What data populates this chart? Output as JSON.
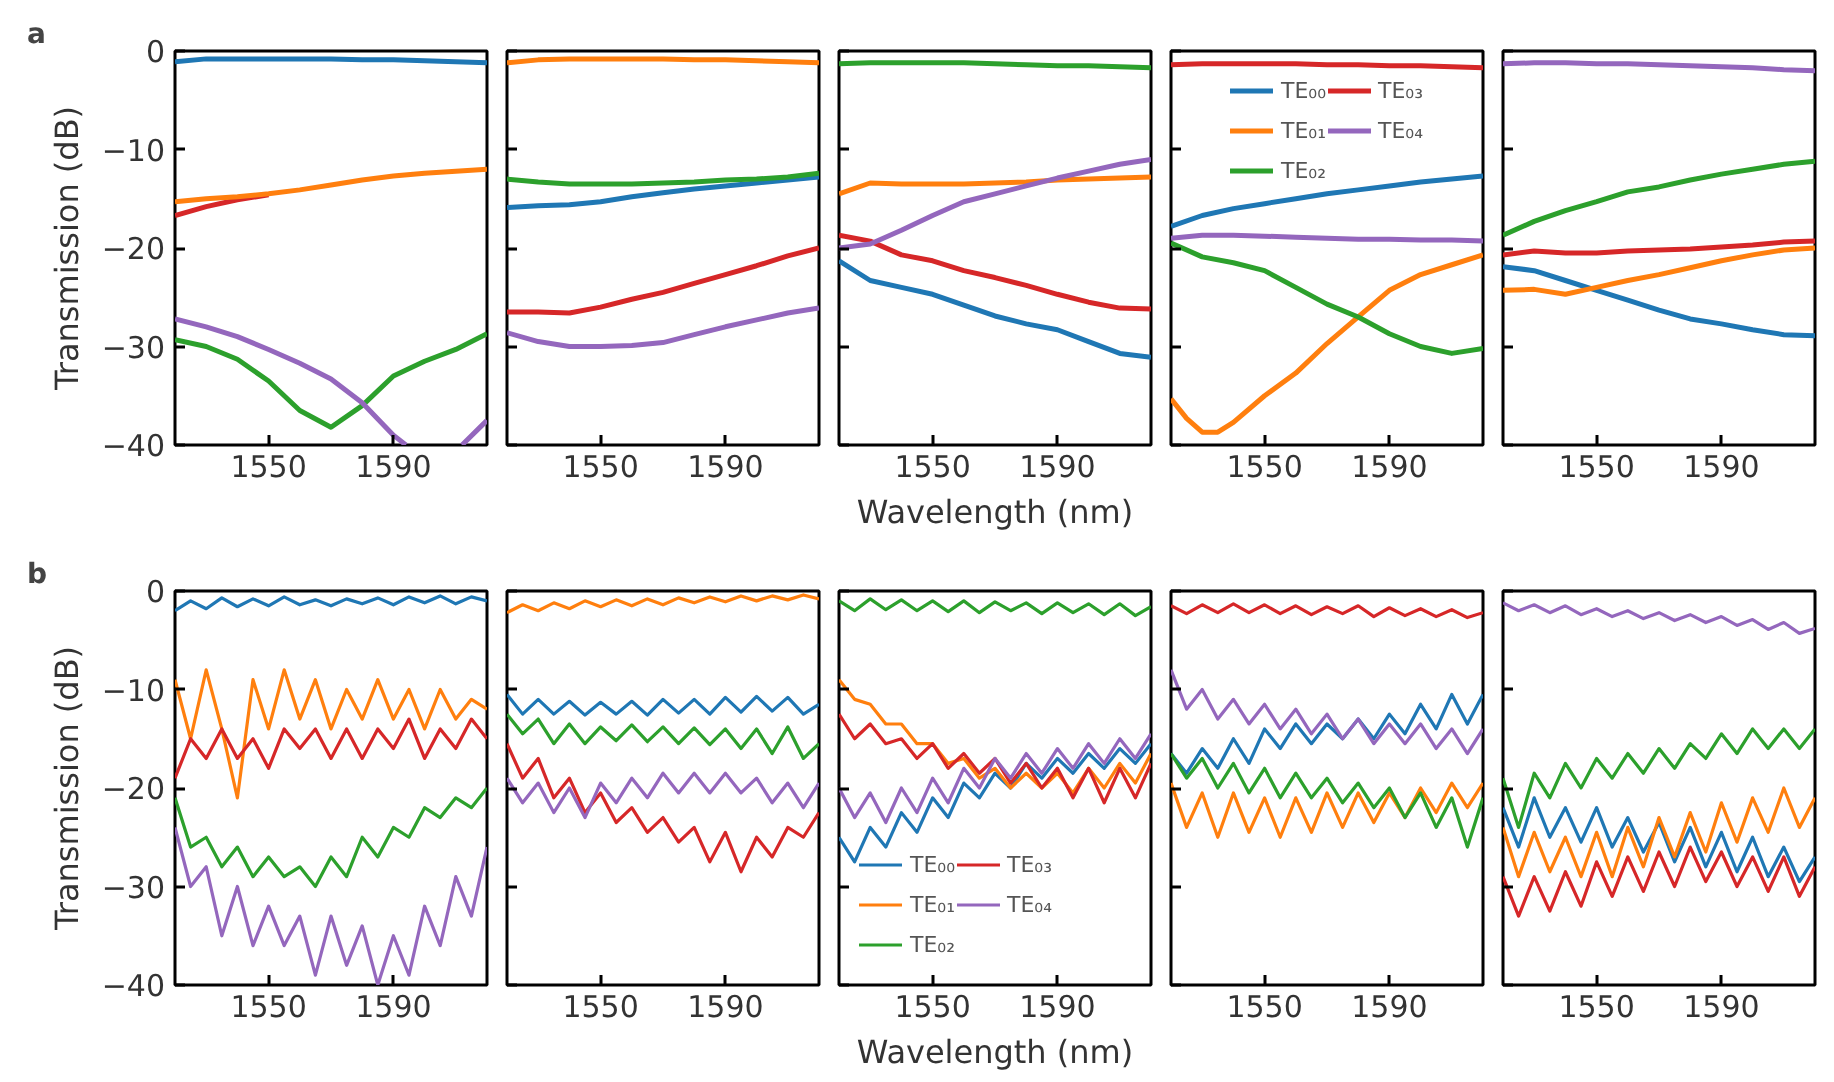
{
  "chart_data": [
    {
      "type": "line",
      "title": "a",
      "ylabel": "Transmission (dB)",
      "xlim": [
        1520,
        1620
      ],
      "ylim": [
        -40,
        0
      ],
      "xticks": [
        1550,
        1590
      ],
      "yticks": [
        {
          "value": -40,
          "label": "−40"
        },
        {
          "value": -30,
          "label": "−30"
        },
        {
          "value": -20,
          "label": "−20"
        },
        {
          "value": -10,
          "label": "−10"
        },
        0
      ],
      "x": [
        1520,
        1530,
        1540,
        1550,
        1560,
        1570,
        1580,
        1590,
        1600,
        1610,
        1620
      ],
      "series": [
        {
          "color": "#1f77b4",
          "values": [
            -1.1,
            -0.8,
            -0.8,
            -0.8,
            -0.8,
            -0.8,
            -0.9,
            -0.9,
            -1.0,
            -1.1,
            -1.2
          ]
        },
        {
          "color": "#d62728",
          "values": [
            -16.7,
            -15.8,
            -15.1,
            -14.6,
            null,
            null,
            null,
            null,
            null,
            null,
            null
          ]
        },
        {
          "color": "#ff7f0e",
          "values": [
            -15.3,
            -15.0,
            -14.8,
            -14.5,
            -14.1,
            -13.6,
            -13.1,
            -12.7,
            -12.4,
            -12.2,
            -12.0
          ]
        },
        {
          "color": "#2ca02c",
          "values": [
            -29.3,
            -30.0,
            -31.3,
            -33.5,
            -36.5,
            -38.2,
            -36.0,
            -33.0,
            -31.5,
            -30.3,
            -28.7
          ]
        },
        {
          "color": "#9467bd",
          "x": [
            1520,
            1530,
            1540,
            1550,
            1560,
            1570,
            1580,
            1590,
            1594,
            1603,
            1612,
            1620
          ],
          "values": [
            -27.2,
            -28.0,
            -29.0,
            -30.3,
            -31.7,
            -33.3,
            -35.7,
            -39.0,
            -40.0,
            null,
            -40.0,
            -37.5
          ]
        }
      ]
    },
    {
      "type": "line",
      "tick_labels": "x",
      "xlim": [
        1520,
        1620
      ],
      "ylim": [
        -40,
        0
      ],
      "xticks": [
        1550,
        1590
      ],
      "yticks": [
        {
          "value": -40,
          "label": null
        },
        {
          "value": -30,
          "label": null
        },
        {
          "value": -20,
          "label": null
        },
        {
          "value": -10,
          "label": null
        },
        {
          "value": 0,
          "label": null
        }
      ],
      "x": [
        1520,
        1530,
        1540,
        1550,
        1560,
        1570,
        1580,
        1590,
        1600,
        1610,
        1620
      ],
      "series": [
        {
          "color": "#1f77b4",
          "values": [
            -15.9,
            -15.7,
            -15.6,
            -15.3,
            -14.8,
            -14.4,
            -14.0,
            -13.7,
            -13.4,
            -13.1,
            -12.8
          ]
        },
        {
          "color": "#ff7f0e",
          "values": [
            -1.2,
            -0.9,
            -0.8,
            -0.8,
            -0.8,
            -0.8,
            -0.9,
            -0.9,
            -1.0,
            -1.1,
            -1.2
          ]
        },
        {
          "color": "#2ca02c",
          "values": [
            -13.0,
            -13.3,
            -13.5,
            -13.5,
            -13.5,
            -13.4,
            -13.3,
            -13.1,
            -13.0,
            -12.8,
            -12.4
          ]
        },
        {
          "color": "#d62728",
          "values": [
            -26.5,
            -26.5,
            -26.6,
            -26.0,
            -25.2,
            -24.5,
            -23.6,
            -22.7,
            -21.8,
            -20.8,
            -20.0
          ]
        },
        {
          "color": "#9467bd",
          "values": [
            -28.6,
            -29.5,
            -30.0,
            -30.0,
            -29.9,
            -29.6,
            -28.8,
            -28.0,
            -27.3,
            -26.6,
            -26.1
          ]
        }
      ]
    },
    {
      "type": "line",
      "tick_labels": "x",
      "xlabel": "Wavelength (nm)",
      "xlim": [
        1520,
        1620
      ],
      "ylim": [
        -40,
        0
      ],
      "xticks": [
        1550,
        1590
      ],
      "yticks": [
        {
          "value": -40,
          "label": null
        },
        {
          "value": -30,
          "label": null
        },
        {
          "value": -20,
          "label": null
        },
        {
          "value": -10,
          "label": null
        },
        {
          "value": 0,
          "label": null
        }
      ],
      "x": [
        1520,
        1530,
        1540,
        1550,
        1560,
        1570,
        1580,
        1590,
        1600,
        1610,
        1620
      ],
      "series": [
        {
          "color": "#1f77b4",
          "values": [
            -21.3,
            -23.3,
            -24.0,
            -24.7,
            -25.8,
            -26.9,
            -27.7,
            -28.3,
            -29.5,
            -30.7,
            -31.1
          ]
        },
        {
          "color": "#ff7f0e",
          "values": [
            -14.5,
            -13.4,
            -13.5,
            -13.5,
            -13.5,
            -13.4,
            -13.3,
            -13.1,
            -13.0,
            -12.9,
            -12.8
          ]
        },
        {
          "color": "#2ca02c",
          "values": [
            -1.3,
            -1.2,
            -1.2,
            -1.2,
            -1.2,
            -1.3,
            -1.4,
            -1.5,
            -1.5,
            -1.6,
            -1.7
          ]
        },
        {
          "color": "#d62728",
          "values": [
            -18.7,
            -19.3,
            -20.7,
            -21.3,
            -22.3,
            -23.0,
            -23.8,
            -24.7,
            -25.5,
            -26.1,
            -26.2
          ]
        },
        {
          "color": "#9467bd",
          "values": [
            -20.0,
            -19.6,
            -18.2,
            -16.7,
            -15.3,
            -14.5,
            -13.7,
            -12.9,
            -12.2,
            -11.5,
            -11.0
          ]
        }
      ]
    },
    {
      "type": "line",
      "tick_labels": "x",
      "legend": "top",
      "xlim": [
        1520,
        1620
      ],
      "ylim": [
        -40,
        0
      ],
      "xticks": [
        1550,
        1590
      ],
      "yticks": [
        {
          "value": -40,
          "label": null
        },
        {
          "value": -30,
          "label": null
        },
        {
          "value": -20,
          "label": null
        },
        {
          "value": -10,
          "label": null
        },
        {
          "value": 0,
          "label": null
        }
      ],
      "x": [
        1520,
        1530,
        1540,
        1550,
        1560,
        1570,
        1580,
        1590,
        1600,
        1610,
        1620
      ],
      "series": [
        {
          "name": "TE₀₀",
          "color": "#1f77b4",
          "values": [
            -17.8,
            -16.7,
            -16.0,
            -15.5,
            -15.0,
            -14.5,
            -14.1,
            -13.7,
            -13.3,
            -13.0,
            -12.7
          ]
        },
        {
          "name": "TE₀₁",
          "color": "#ff7f0e",
          "x": [
            1520,
            1525,
            1530,
            1535,
            1540,
            1550,
            1560,
            1570,
            1580,
            1590,
            1600,
            1610,
            1620
          ],
          "values": [
            -35.3,
            -37.3,
            -38.7,
            -38.7,
            -37.7,
            -35.0,
            -32.7,
            -29.7,
            -27.0,
            -24.3,
            -22.7,
            -21.7,
            -20.7
          ]
        },
        {
          "name": "TE₀₂",
          "color": "#2ca02c",
          "values": [
            -19.5,
            -20.9,
            -21.5,
            -22.3,
            -24.0,
            -25.7,
            -27.0,
            -28.7,
            -30.0,
            -30.7,
            -30.2
          ]
        },
        {
          "name": "TE₀₃",
          "color": "#d62728",
          "values": [
            -1.4,
            -1.3,
            -1.3,
            -1.3,
            -1.3,
            -1.4,
            -1.4,
            -1.5,
            -1.5,
            -1.6,
            -1.7
          ]
        },
        {
          "name": "TE₀₄",
          "color": "#9467bd",
          "values": [
            -19.0,
            -18.7,
            -18.7,
            -18.8,
            -18.9,
            -19.0,
            -19.1,
            -19.1,
            -19.2,
            -19.2,
            -19.3
          ]
        }
      ]
    },
    {
      "type": "line",
      "tick_labels": "x",
      "xlim": [
        1520,
        1620
      ],
      "ylim": [
        -40,
        0
      ],
      "xticks": [
        1550,
        1590
      ],
      "yticks": [
        {
          "value": -40,
          "label": null
        },
        {
          "value": -30,
          "label": null
        },
        {
          "value": -20,
          "label": null
        },
        {
          "value": -10,
          "label": null
        },
        {
          "value": 0,
          "label": null
        }
      ],
      "x": [
        1520,
        1530,
        1540,
        1550,
        1560,
        1570,
        1580,
        1590,
        1600,
        1610,
        1620
      ],
      "series": [
        {
          "color": "#1f77b4",
          "values": [
            -21.9,
            -22.3,
            -23.3,
            -24.3,
            -25.3,
            -26.3,
            -27.2,
            -27.7,
            -28.3,
            -28.8,
            -28.9
          ]
        },
        {
          "color": "#ff7f0e",
          "values": [
            -24.3,
            -24.2,
            -24.7,
            -24.0,
            -23.3,
            -22.7,
            -22.0,
            -21.3,
            -20.7,
            -20.2,
            -20.0
          ]
        },
        {
          "color": "#2ca02c",
          "values": [
            -18.7,
            -17.3,
            -16.2,
            -15.3,
            -14.3,
            -13.8,
            -13.1,
            -12.5,
            -12.0,
            -11.5,
            -11.2
          ]
        },
        {
          "color": "#d62728",
          "values": [
            -20.7,
            -20.3,
            -20.5,
            -20.5,
            -20.3,
            -20.2,
            -20.1,
            -19.9,
            -19.7,
            -19.4,
            -19.3
          ]
        },
        {
          "color": "#9467bd",
          "values": [
            -1.3,
            -1.2,
            -1.2,
            -1.3,
            -1.3,
            -1.4,
            -1.5,
            -1.6,
            -1.7,
            -1.9,
            -2.0
          ]
        }
      ]
    },
    {
      "type": "line",
      "title": "b",
      "ylabel": "Transmission (dB)",
      "xlim": [
        1520,
        1620
      ],
      "ylim": [
        -40,
        0
      ],
      "xticks": [
        1550,
        1590
      ],
      "yticks": [
        {
          "value": -40,
          "label": "−40"
        },
        {
          "value": -30,
          "label": "−30"
        },
        {
          "value": -20,
          "label": "−20"
        },
        {
          "value": -10,
          "label": "−10"
        },
        0
      ],
      "x": [
        1520,
        1525,
        1530,
        1535,
        1540,
        1545,
        1550,
        1555,
        1560,
        1565,
        1570,
        1575,
        1580,
        1585,
        1590,
        1595,
        1600,
        1605,
        1610,
        1615,
        1620
      ],
      "series": [
        {
          "color": "#1f77b4",
          "values": [
            -2.0,
            -1.0,
            -1.8,
            -0.7,
            -1.6,
            -0.8,
            -1.5,
            -0.6,
            -1.4,
            -0.9,
            -1.5,
            -0.8,
            -1.3,
            -0.7,
            -1.4,
            -0.6,
            -1.2,
            -0.5,
            -1.3,
            -0.6,
            -1.0
          ]
        },
        {
          "color": "#ff7f0e",
          "values": [
            -9,
            -15,
            -8,
            -14,
            -21,
            -9,
            -14,
            -8,
            -13,
            -9,
            -14,
            -10,
            -13,
            -9,
            -13,
            -10,
            -14,
            -10,
            -13,
            -11,
            -12
          ]
        },
        {
          "color": "#2ca02c",
          "values": [
            -21,
            -26,
            -25,
            -28,
            -26,
            -29,
            -27,
            -29,
            -28,
            -30,
            -27,
            -29,
            -25,
            -27,
            -24,
            -25,
            -22,
            -23,
            -21,
            -22,
            -20
          ]
        },
        {
          "color": "#d62728",
          "values": [
            -19,
            -15,
            -17,
            -14,
            -17,
            -15,
            -18,
            -14,
            -16,
            -14,
            -17,
            -14,
            -17,
            -14,
            -16,
            -13,
            -17,
            -14,
            -16,
            -13,
            -15
          ]
        },
        {
          "color": "#9467bd",
          "values": [
            -24,
            -30,
            -28,
            -35,
            -30,
            -36,
            -32,
            -36,
            -33,
            -39,
            -33,
            -38,
            -34,
            -40,
            -35,
            -39,
            -32,
            -36,
            -29,
            -33,
            -26
          ]
        }
      ]
    },
    {
      "type": "line",
      "tick_labels": "x",
      "xlim": [
        1520,
        1620
      ],
      "ylim": [
        -40,
        0
      ],
      "xticks": [
        1550,
        1590
      ],
      "yticks": [
        {
          "value": -40,
          "label": null
        },
        {
          "value": -30,
          "label": null
        },
        {
          "value": -20,
          "label": null
        },
        {
          "value": -10,
          "label": null
        },
        {
          "value": 0,
          "label": null
        }
      ],
      "x": [
        1520,
        1525,
        1530,
        1535,
        1540,
        1545,
        1550,
        1555,
        1560,
        1565,
        1570,
        1575,
        1580,
        1585,
        1590,
        1595,
        1600,
        1605,
        1610,
        1615,
        1620
      ],
      "series": [
        {
          "color": "#1f77b4",
          "values": [
            -10.5,
            -12.5,
            -11,
            -12.5,
            -11.2,
            -12.6,
            -11.3,
            -12.5,
            -11.2,
            -12.6,
            -11,
            -12.4,
            -11,
            -12.5,
            -10.8,
            -12.3,
            -10.7,
            -12.2,
            -10.8,
            -12.5,
            -11.5
          ]
        },
        {
          "color": "#ff7f0e",
          "values": [
            -2.2,
            -1.4,
            -2.0,
            -1.2,
            -1.8,
            -1.0,
            -1.6,
            -0.9,
            -1.5,
            -0.8,
            -1.4,
            -0.7,
            -1.2,
            -0.6,
            -1.1,
            -0.5,
            -1.0,
            -0.5,
            -0.9,
            -0.4,
            -0.8
          ]
        },
        {
          "color": "#2ca02c",
          "values": [
            -12.5,
            -14.5,
            -13,
            -15.5,
            -13.5,
            -15.5,
            -13.8,
            -15.2,
            -13.6,
            -15.3,
            -13.8,
            -15.5,
            -13.9,
            -15.6,
            -14,
            -16,
            -14,
            -16.5,
            -13.8,
            -17,
            -15.5
          ]
        },
        {
          "color": "#d62728",
          "values": [
            -15.5,
            -19,
            -17,
            -21,
            -19,
            -22.5,
            -20.5,
            -23.5,
            -22,
            -24.5,
            -23,
            -25.5,
            -24,
            -27.5,
            -24.5,
            -28.5,
            -25,
            -27,
            -24,
            -25,
            -22.5
          ]
        },
        {
          "color": "#9467bd",
          "values": [
            -19,
            -21.5,
            -19.5,
            -22.5,
            -20,
            -23,
            -19.5,
            -21.5,
            -19,
            -21,
            -18.5,
            -20.5,
            -18.5,
            -20.5,
            -18.5,
            -20.5,
            -19,
            -21.5,
            -19.5,
            -22,
            -19.5
          ]
        }
      ]
    },
    {
      "type": "line",
      "tick_labels": "x",
      "xlabel": "Wavelength (nm)",
      "legend": "bottom left",
      "xlim": [
        1520,
        1620
      ],
      "ylim": [
        -40,
        0
      ],
      "xticks": [
        1550,
        1590
      ],
      "yticks": [
        {
          "value": -40,
          "label": null
        },
        {
          "value": -30,
          "label": null
        },
        {
          "value": -20,
          "label": null
        },
        {
          "value": -10,
          "label": null
        },
        {
          "value": 0,
          "label": null
        }
      ],
      "x": [
        1520,
        1525,
        1530,
        1535,
        1540,
        1545,
        1550,
        1555,
        1560,
        1565,
        1570,
        1575,
        1580,
        1585,
        1590,
        1595,
        1600,
        1605,
        1610,
        1615,
        1620
      ],
      "series": [
        {
          "name": "TE₀₀",
          "color": "#1f77b4",
          "values": [
            -25,
            -27.5,
            -24,
            -26,
            -22.5,
            -24.5,
            -21,
            -23,
            -19.5,
            -21,
            -18.5,
            -20,
            -17.5,
            -19,
            -17,
            -18.5,
            -16.5,
            -18,
            -16,
            -17.5,
            -15.5
          ]
        },
        {
          "name": "TE₀₁",
          "color": "#ff7f0e",
          "values": [
            -9,
            -11,
            -11.5,
            -13.5,
            -13.5,
            -15.5,
            -15.5,
            -17.5,
            -17,
            -19,
            -18,
            -20,
            -18.5,
            -20,
            -18.5,
            -20.5,
            -18,
            -20,
            -17.5,
            -19.5,
            -16.5
          ]
        },
        {
          "name": "TE₀₂",
          "color": "#2ca02c",
          "values": [
            -1.0,
            -2.0,
            -0.8,
            -1.9,
            -0.9,
            -2.0,
            -1.0,
            -2.1,
            -1.0,
            -2.2,
            -1.1,
            -2.0,
            -1.2,
            -2.3,
            -1.2,
            -2.2,
            -1.3,
            -2.4,
            -1.3,
            -2.5,
            -1.6
          ]
        },
        {
          "name": "TE₀₃",
          "color": "#d62728",
          "values": [
            -12.5,
            -15,
            -13.5,
            -15.5,
            -15,
            -17,
            -15.5,
            -18,
            -16.5,
            -18.5,
            -17,
            -19.5,
            -17.5,
            -20,
            -18,
            -21,
            -18,
            -21.5,
            -18,
            -21,
            -17.5
          ]
        },
        {
          "name": "TE₀₄",
          "color": "#9467bd",
          "values": [
            -20,
            -23,
            -20.5,
            -23.5,
            -20,
            -22.5,
            -19,
            -21.5,
            -18,
            -20,
            -17,
            -19,
            -16.5,
            -18.5,
            -16,
            -18,
            -15.5,
            -17.5,
            -15,
            -17,
            -14.5
          ]
        }
      ]
    },
    {
      "type": "line",
      "tick_labels": "x",
      "xlim": [
        1520,
        1620
      ],
      "ylim": [
        -40,
        0
      ],
      "xticks": [
        1550,
        1590
      ],
      "yticks": [
        {
          "value": -40,
          "label": null
        },
        {
          "value": -30,
          "label": null
        },
        {
          "value": -20,
          "label": null
        },
        {
          "value": -10,
          "label": null
        },
        {
          "value": 0,
          "label": null
        }
      ],
      "x": [
        1520,
        1525,
        1530,
        1535,
        1540,
        1545,
        1550,
        1555,
        1560,
        1565,
        1570,
        1575,
        1580,
        1585,
        1590,
        1595,
        1600,
        1605,
        1610,
        1615,
        1620
      ],
      "series": [
        {
          "color": "#1f77b4",
          "values": [
            -16.5,
            -18.5,
            -16,
            -18,
            -15,
            -17.5,
            -14,
            -16,
            -13.5,
            -15.5,
            -13.5,
            -15,
            -13,
            -15,
            -12.5,
            -14.5,
            -11.5,
            -14,
            -10.5,
            -13.5,
            -10.5
          ]
        },
        {
          "color": "#ff7f0e",
          "values": [
            -19.5,
            -24,
            -20.5,
            -25,
            -20.5,
            -24.5,
            -21,
            -25,
            -21,
            -24.5,
            -20.5,
            -24,
            -20.5,
            -23.5,
            -20.5,
            -23,
            -20,
            -22.5,
            -19.5,
            -22,
            -19.5
          ]
        },
        {
          "color": "#2ca02c",
          "values": [
            -16.5,
            -19,
            -17,
            -20,
            -17.5,
            -20.5,
            -18,
            -21,
            -18.5,
            -21,
            -19,
            -21.5,
            -19.5,
            -22,
            -20,
            -23,
            -20.5,
            -24,
            -21,
            -26,
            -21
          ]
        },
        {
          "color": "#d62728",
          "values": [
            -1.5,
            -2.3,
            -1.4,
            -2.2,
            -1.3,
            -2.2,
            -1.4,
            -2.3,
            -1.5,
            -2.4,
            -1.6,
            -2.3,
            -1.5,
            -2.6,
            -1.7,
            -2.5,
            -1.8,
            -2.6,
            -1.9,
            -2.7,
            -2.2
          ]
        },
        {
          "color": "#9467bd",
          "values": [
            -8,
            -12,
            -10,
            -13,
            -11,
            -13.5,
            -11.5,
            -14,
            -12,
            -14.5,
            -12.5,
            -15,
            -13,
            -15.5,
            -13.5,
            -15.5,
            -13.5,
            -16,
            -14,
            -16.5,
            -14
          ]
        }
      ]
    },
    {
      "type": "line",
      "tick_labels": "x",
      "xlim": [
        1520,
        1620
      ],
      "ylim": [
        -40,
        0
      ],
      "xticks": [
        1550,
        1590
      ],
      "yticks": [
        {
          "value": -40,
          "label": null
        },
        {
          "value": -30,
          "label": null
        },
        {
          "value": -20,
          "label": null
        },
        {
          "value": -10,
          "label": null
        },
        {
          "value": 0,
          "label": null
        }
      ],
      "x": [
        1520,
        1525,
        1530,
        1535,
        1540,
        1545,
        1550,
        1555,
        1560,
        1565,
        1570,
        1575,
        1580,
        1585,
        1590,
        1595,
        1600,
        1605,
        1610,
        1615,
        1620
      ],
      "series": [
        {
          "color": "#1f77b4",
          "values": [
            -22,
            -26,
            -21,
            -25,
            -22,
            -25.5,
            -22,
            -26,
            -23,
            -26.5,
            -23.5,
            -27.5,
            -24,
            -28,
            -24.5,
            -28.5,
            -25,
            -29,
            -26,
            -29.5,
            -27
          ]
        },
        {
          "color": "#ff7f0e",
          "values": [
            -24,
            -29,
            -24.5,
            -28.5,
            -25,
            -29,
            -24.5,
            -29,
            -24,
            -28,
            -23,
            -27,
            -22.5,
            -26.5,
            -21.5,
            -25.5,
            -21,
            -24.5,
            -20,
            -24,
            -21
          ]
        },
        {
          "color": "#2ca02c",
          "values": [
            -19,
            -24,
            -18.5,
            -21,
            -17.5,
            -20,
            -17,
            -19,
            -16.5,
            -18.5,
            -16,
            -18,
            -15.5,
            -17,
            -14.5,
            -16.5,
            -14,
            -16,
            -14,
            -16,
            -14
          ]
        },
        {
          "color": "#d62728",
          "values": [
            -29,
            -33,
            -29,
            -32.5,
            -28.5,
            -32,
            -27.5,
            -31,
            -27,
            -30.5,
            -26.5,
            -30,
            -26,
            -29.5,
            -26.5,
            -30,
            -27,
            -30.5,
            -27,
            -31,
            -28
          ]
        },
        {
          "color": "#9467bd",
          "values": [
            -1.2,
            -2.0,
            -1.4,
            -2.2,
            -1.5,
            -2.4,
            -1.8,
            -2.6,
            -2.0,
            -2.8,
            -2.2,
            -3.0,
            -2.4,
            -3.2,
            -2.6,
            -3.5,
            -2.9,
            -3.9,
            -3.2,
            -4.3,
            -3.8
          ]
        }
      ]
    }
  ]
}
